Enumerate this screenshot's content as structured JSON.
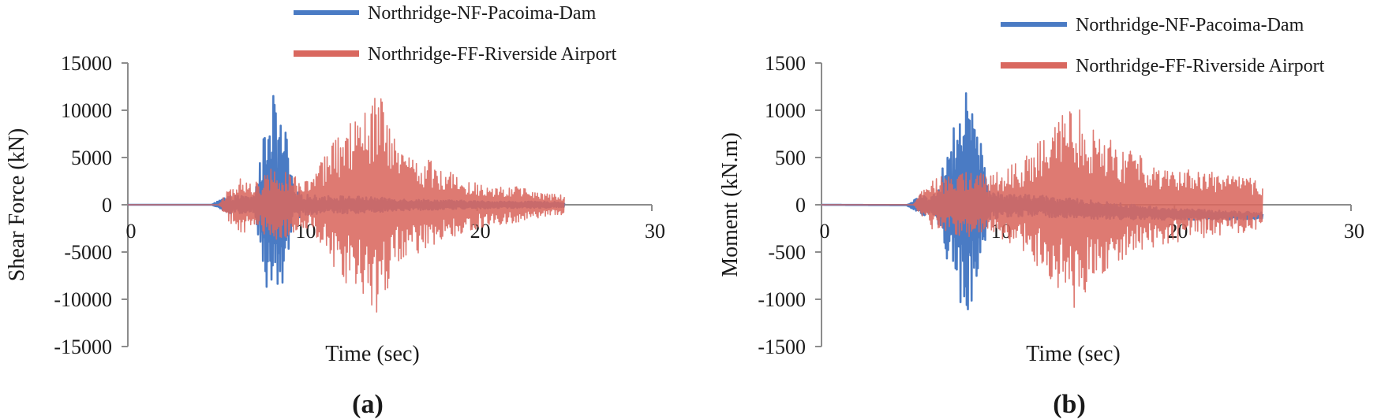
{
  "chart_data": [
    {
      "type": "line",
      "panel_label": "(a)",
      "xlabel": "Time (sec)",
      "ylabel": "Shear Force (kN)",
      "xlim": [
        0,
        30
      ],
      "ylim": [
        -15000,
        15000
      ],
      "x_ticks": [
        0,
        10,
        20,
        30
      ],
      "y_ticks": [
        15000,
        10000,
        5000,
        0,
        -5000,
        -10000,
        -15000
      ],
      "legend_position": "top-center",
      "series": [
        {
          "name": "Northridge-NF-Pacoima-Dam",
          "color": "#4a7bc4",
          "duration": 25,
          "envelope": [
            [
              0,
              0
            ],
            [
              4.8,
              0
            ],
            [
              5.5,
              800
            ],
            [
              6.2,
              1000
            ],
            [
              7.2,
              900
            ],
            [
              7.6,
              5000
            ],
            [
              8.0,
              10000
            ],
            [
              8.25,
              13000
            ],
            [
              8.55,
              9000
            ],
            [
              9.0,
              8500
            ],
            [
              9.5,
              1500
            ],
            [
              10.5,
              1000
            ],
            [
              13,
              900
            ],
            [
              16,
              600
            ],
            [
              20,
              400
            ],
            [
              25,
              300
            ]
          ],
          "bias": [
            [
              0,
              0
            ],
            [
              25,
              0
            ]
          ]
        },
        {
          "name": "Northridge-FF-Riverside Airport",
          "color": "#d9685f",
          "duration": 25,
          "envelope": [
            [
              0,
              0
            ],
            [
              5.2,
              0
            ],
            [
              5.8,
              1800
            ],
            [
              6.5,
              3000
            ],
            [
              7.5,
              2500
            ],
            [
              8.5,
              4500
            ],
            [
              9.5,
              3000
            ],
            [
              10.5,
              2500
            ],
            [
              11.5,
              6000
            ],
            [
              12.5,
              8500
            ],
            [
              13.5,
              9500
            ],
            [
              14.3,
              12000
            ],
            [
              14.8,
              10000
            ],
            [
              15.5,
              6000
            ],
            [
              17,
              5000
            ],
            [
              18.5,
              3500
            ],
            [
              20,
              2500
            ],
            [
              22,
              2000
            ],
            [
              24,
              1200
            ],
            [
              25,
              1000
            ]
          ],
          "bias": [
            [
              0,
              0
            ],
            [
              25,
              0
            ]
          ]
        }
      ]
    },
    {
      "type": "line",
      "panel_label": "(b)",
      "xlabel": "Time (sec)",
      "ylabel": "Moment (kN.m)",
      "xlim": [
        0,
        30
      ],
      "ylim": [
        -1500,
        1500
      ],
      "x_ticks": [
        0,
        10,
        20,
        30
      ],
      "y_ticks": [
        1500,
        1000,
        500,
        0,
        -500,
        -1000,
        -1500
      ],
      "legend_position": "top-right",
      "series": [
        {
          "name": "Northridge-NF-Pacoima-Dam",
          "color": "#4a7bc4",
          "duration": 25,
          "envelope": [
            [
              0,
              0
            ],
            [
              4.8,
              0
            ],
            [
              5.5,
              100
            ],
            [
              6.5,
              120
            ],
            [
              7.4,
              800
            ],
            [
              7.8,
              1000
            ],
            [
              8.2,
              1200
            ],
            [
              8.6,
              1000
            ],
            [
              9.0,
              700
            ],
            [
              9.5,
              150
            ],
            [
              11,
              120
            ],
            [
              15,
              100
            ],
            [
              20,
              60
            ],
            [
              25,
              40
            ]
          ],
          "bias": [
            [
              0,
              0
            ],
            [
              12,
              -10
            ],
            [
              16,
              -60
            ],
            [
              20,
              -100
            ],
            [
              25,
              -120
            ]
          ]
        },
        {
          "name": "Northridge-FF-Riverside Airport",
          "color": "#d9685f",
          "duration": 25,
          "envelope": [
            [
              0,
              0
            ],
            [
              5.2,
              0
            ],
            [
              5.8,
              200
            ],
            [
              6.5,
              300
            ],
            [
              7.5,
              300
            ],
            [
              8.5,
              400
            ],
            [
              9.5,
              300
            ],
            [
              10.5,
              400
            ],
            [
              11.5,
              500
            ],
            [
              12.5,
              700
            ],
            [
              13.5,
              900
            ],
            [
              14.3,
              1200
            ],
            [
              14.8,
              1000
            ],
            [
              15.5,
              800
            ],
            [
              17,
              600
            ],
            [
              18.5,
              500
            ],
            [
              20,
              400
            ],
            [
              22,
              350
            ],
            [
              24,
              300
            ],
            [
              25,
              250
            ]
          ],
          "bias": [
            [
              0,
              0
            ],
            [
              25,
              0
            ]
          ]
        }
      ]
    }
  ]
}
